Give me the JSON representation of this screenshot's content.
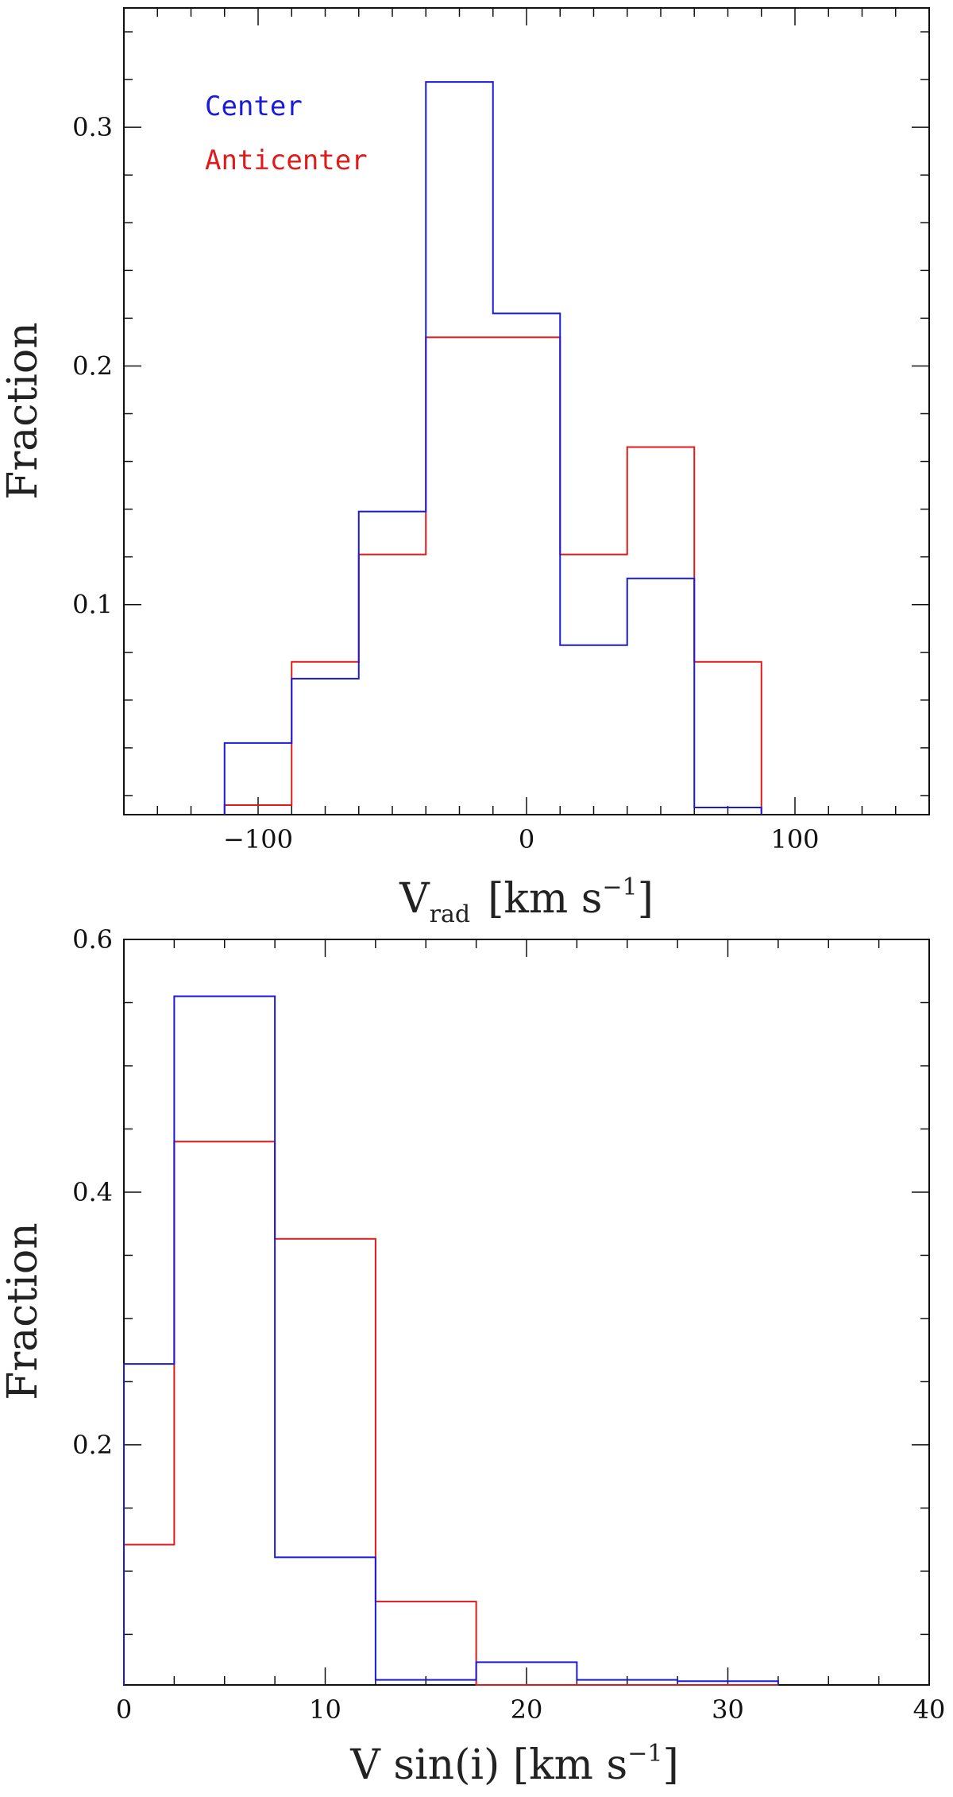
{
  "chart_data": [
    {
      "type": "histogram",
      "xlabel": "V",
      "xlabel_sub": "rad",
      "xlabel_units": "[km s",
      "xlabel_exp": "−1",
      "xlabel_close": "]",
      "ylabel": "Fraction",
      "xlim": [
        -150,
        150
      ],
      "ylim": [
        0.012,
        0.35
      ],
      "x_ticks": [
        {
          "value": -100,
          "label": "−100"
        },
        {
          "value": 0,
          "label": "0"
        },
        {
          "value": 100,
          "label": "100"
        }
      ],
      "y_ticks": [
        {
          "value": 0.1,
          "label": "0.1"
        },
        {
          "value": 0.2,
          "label": "0.2"
        },
        {
          "value": 0.3,
          "label": "0.3"
        }
      ],
      "legend": [
        {
          "label": "Center",
          "color": "#1a1adc"
        },
        {
          "label": "Anticenter",
          "color": "#e01a1a"
        }
      ],
      "bin_edges": [
        -112.5,
        -87.5,
        -62.5,
        -37.5,
        -12.5,
        12.5,
        37.5,
        62.5,
        87.5
      ],
      "series": [
        {
          "name": "Anticenter",
          "color": "#e01a1a",
          "values": [
            0.016,
            0.076,
            0.121,
            0.212,
            0.212,
            0.121,
            0.166,
            0.076
          ]
        },
        {
          "name": "Center",
          "color": "#1a1adc",
          "values": [
            0.042,
            0.069,
            0.139,
            0.319,
            0.222,
            0.083,
            0.111,
            0.015
          ]
        }
      ]
    },
    {
      "type": "histogram",
      "xlabel": "V  sin(i)  [km s",
      "xlabel_exp": "−1",
      "xlabel_close": "]",
      "ylabel": "Fraction",
      "xlim": [
        0,
        40
      ],
      "ylim": [
        0.01,
        0.6
      ],
      "x_ticks": [
        {
          "value": 0,
          "label": "0"
        },
        {
          "value": 10,
          "label": "10"
        },
        {
          "value": 20,
          "label": "20"
        },
        {
          "value": 30,
          "label": "30"
        },
        {
          "value": 40,
          "label": "40"
        }
      ],
      "y_ticks": [
        {
          "value": 0.2,
          "label": "0.2"
        },
        {
          "value": 0.4,
          "label": "0.4"
        },
        {
          "value": 0.6,
          "label": "0.6"
        }
      ],
      "bin_edges": [
        0,
        2.5,
        7.5,
        12.5,
        17.5,
        22.5,
        27.5,
        32.5
      ],
      "series": [
        {
          "name": "Anticenter",
          "color": "#e01a1a",
          "values": [
            0.121,
            0.44,
            0.363,
            0.076,
            0.01,
            0.01,
            0.01
          ]
        },
        {
          "name": "Center",
          "color": "#1a1adc",
          "values": [
            0.264,
            0.555,
            0.111,
            0.014,
            0.028,
            0.014,
            0.013
          ]
        }
      ]
    }
  ]
}
